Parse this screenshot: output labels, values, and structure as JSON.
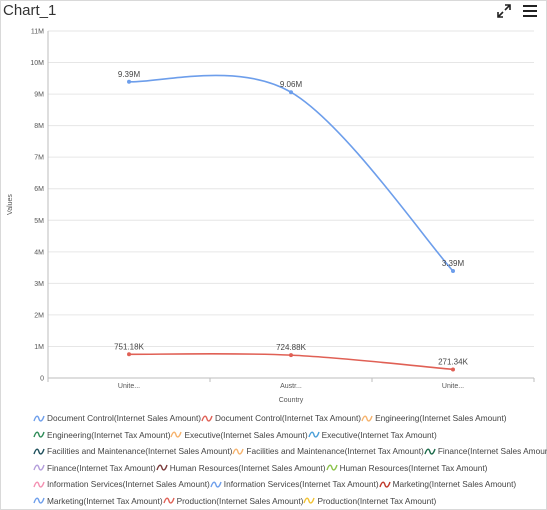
{
  "window": {
    "title": "Chart_1"
  },
  "toolbar": {
    "icons": [
      "expand-icon",
      "menu-icon"
    ]
  },
  "chart_data": {
    "type": "line",
    "title": "Chart_1",
    "xlabel": "Country",
    "ylabel": "Values",
    "categories": [
      "Unite...",
      "Austr...",
      "Unite..."
    ],
    "ylim": [
      0,
      11000000
    ],
    "yticks": [
      "0",
      "1M",
      "2M",
      "3M",
      "4M",
      "5M",
      "6M",
      "7M",
      "8M",
      "9M",
      "10M",
      "11M"
    ],
    "grid": true,
    "legend_position": "bottom",
    "series": [
      {
        "name": "Document Control(Internet Sales Amount)",
        "values": [
          9390000,
          9060000,
          3390000
        ],
        "labels": [
          "9.39M",
          "9.06M",
          "3.39M"
        ],
        "color": "#6d9eeb"
      },
      {
        "name": "Document Control(Internet Tax Amount)",
        "values": [
          751180,
          724880,
          271340
        ],
        "labels": [
          "751.18K",
          "724.88K",
          "271.34K"
        ],
        "color": "#e06055"
      }
    ],
    "legend": [
      [
        "Document Control(Internet Sales Amount)",
        "#6d9eeb"
      ],
      [
        "Document Control(Internet Tax Amount)",
        "#e06055"
      ],
      [
        "Engineering(Internet Sales Amount)",
        "#f6b26b"
      ],
      [
        "Engineering(Internet Tax Amount)",
        "#2e8b57"
      ],
      [
        "Executive(Internet Sales Amount)",
        "#f6b26b"
      ],
      [
        "Executive(Internet Tax Amount)",
        "#4a9fd8"
      ],
      [
        "Facilities and Maintenance(Internet Sales Amount)",
        "#1e4f5c"
      ],
      [
        "Facilities and Maintenance(Internet Tax Amount)",
        "#f6b26b"
      ],
      [
        "Finance(Internet Sales Amount)",
        "#1b6b4a"
      ],
      [
        "Finance(Internet Tax Amount)",
        "#b39ddb"
      ],
      [
        "Human Resources(Internet Sales Amount)",
        "#7a3b3b"
      ],
      [
        "Human Resources(Internet Tax Amount)",
        "#8bc34a"
      ],
      [
        "Information Services(Internet Sales Amount)",
        "#f48fb1"
      ],
      [
        "Information Services(Internet Tax Amount)",
        "#6d9eeb"
      ],
      [
        "Marketing(Internet Sales Amount)",
        "#c0392b"
      ],
      [
        "Marketing(Internet Tax Amount)",
        "#6d9eeb"
      ],
      [
        "Production(Internet Sales Amount)",
        "#e06055"
      ],
      [
        "Production(Internet Tax Amount)",
        "#f1c232"
      ]
    ]
  }
}
